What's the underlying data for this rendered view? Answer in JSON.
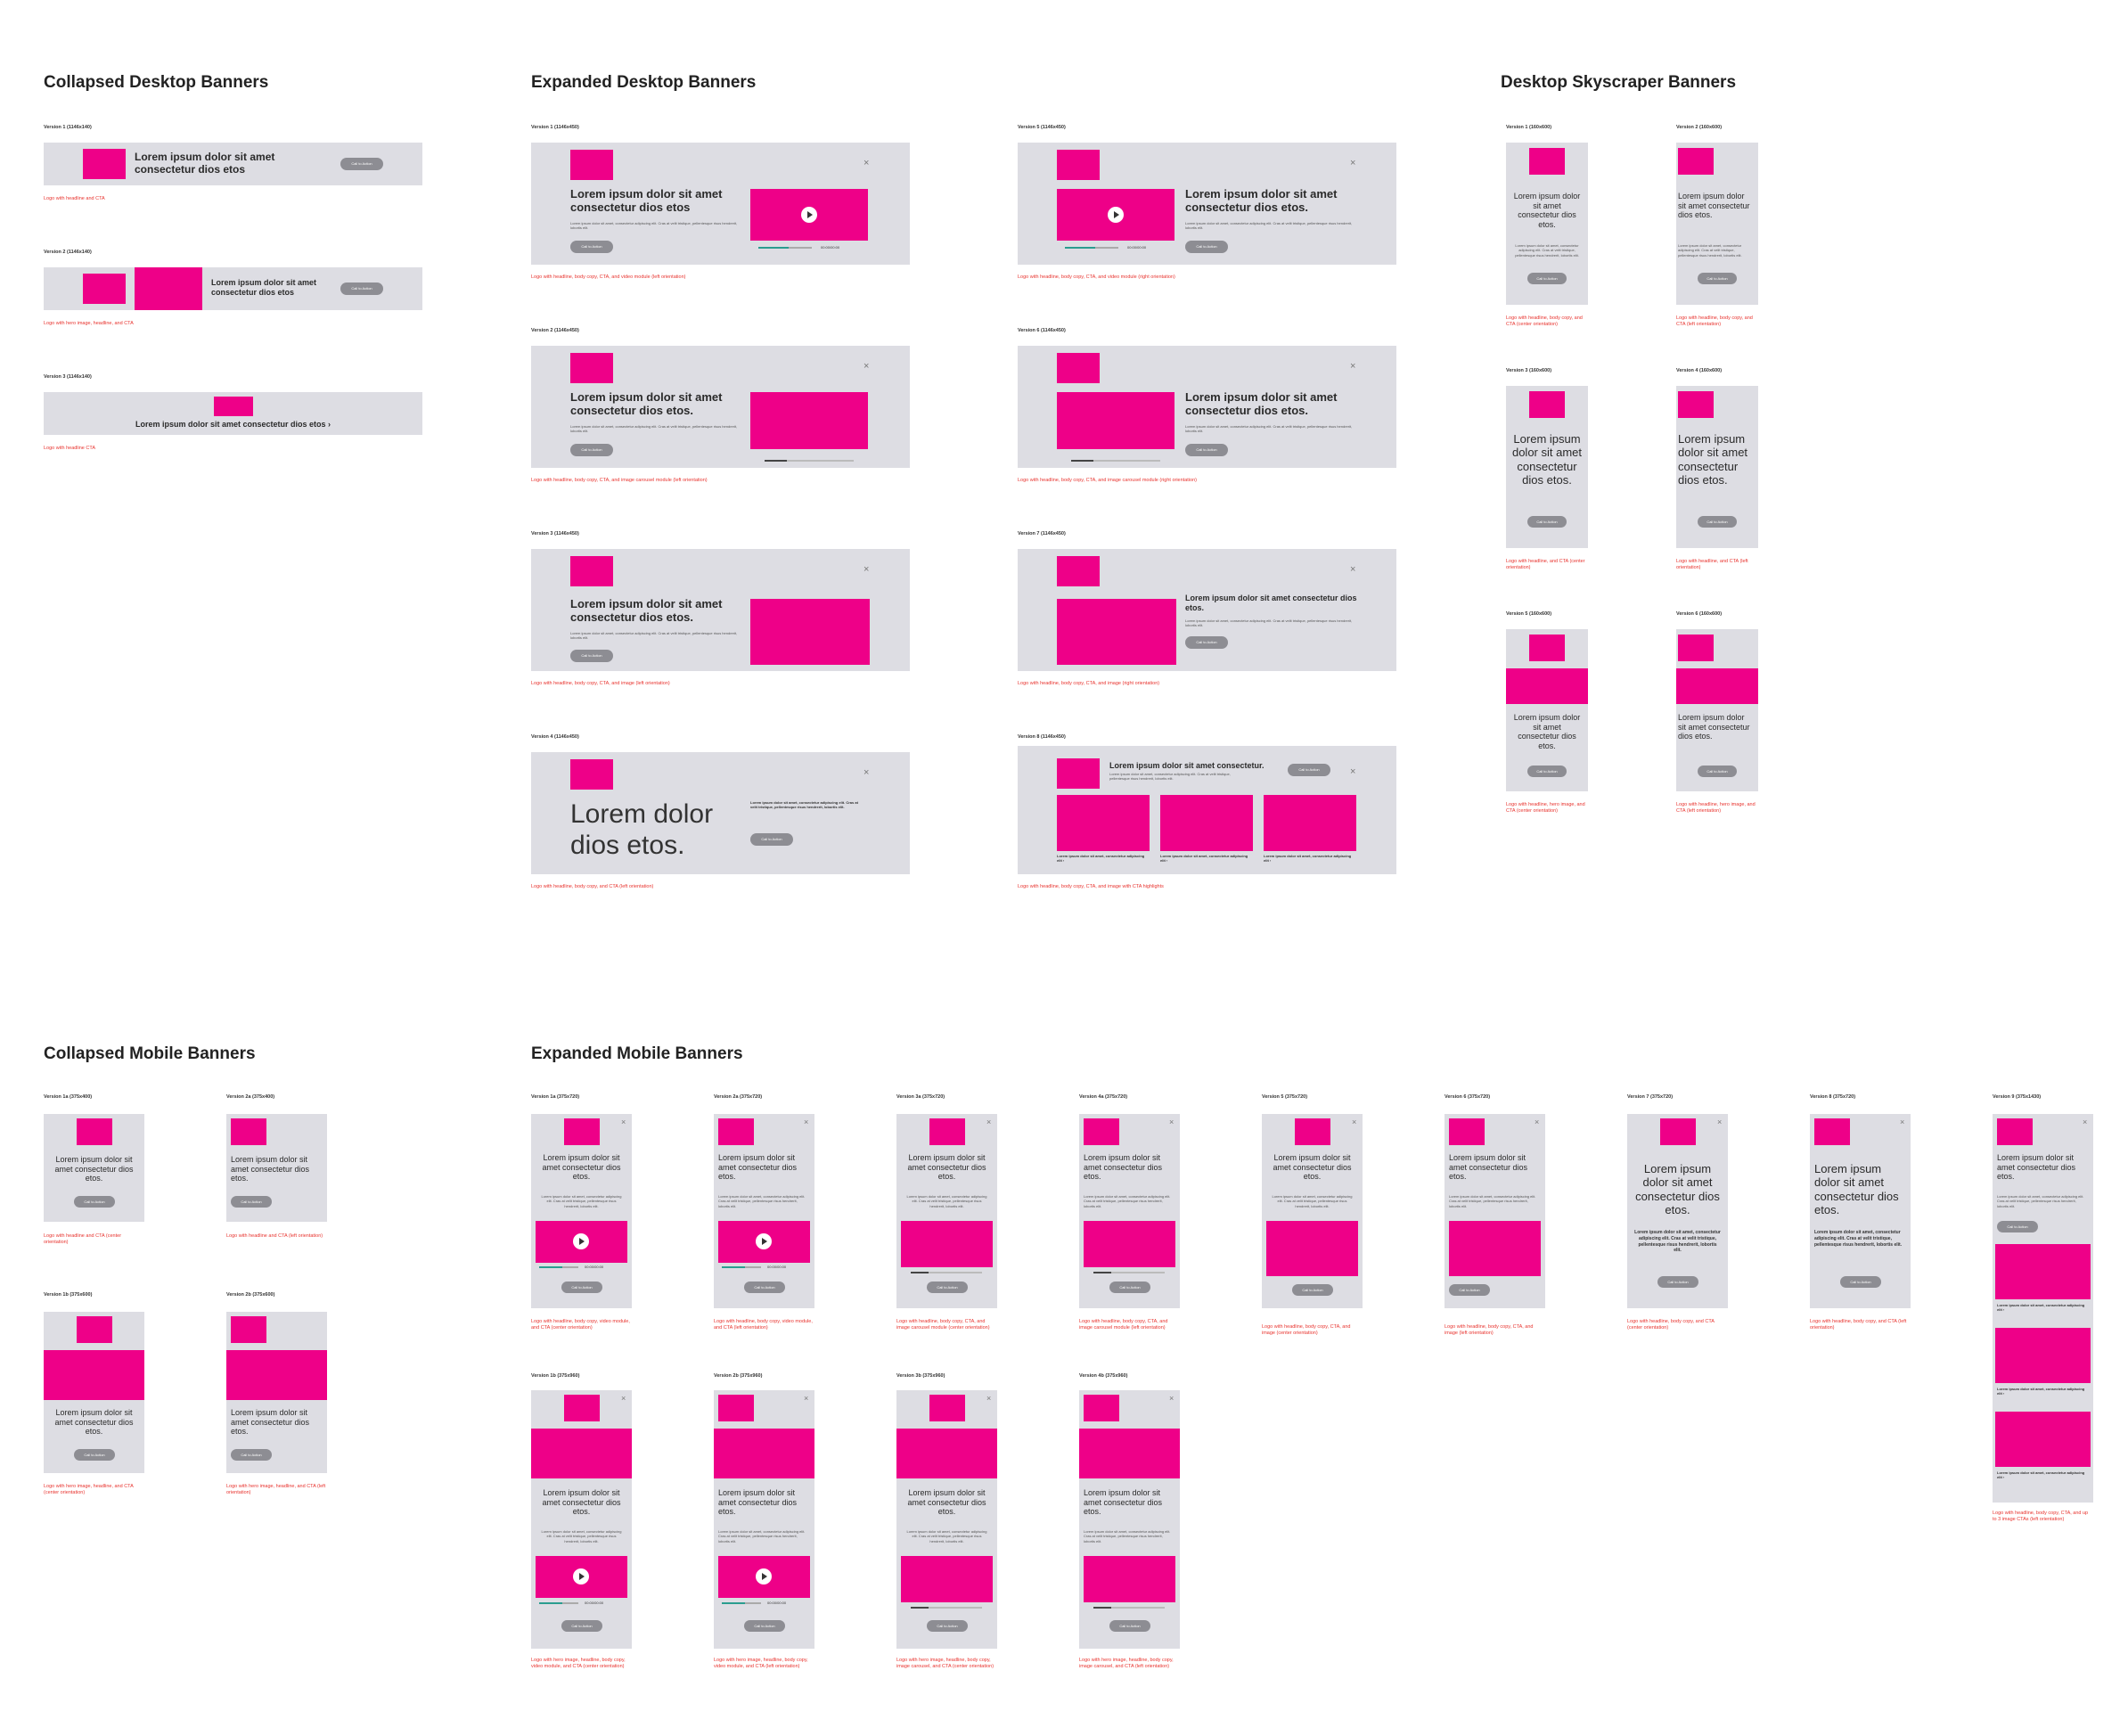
{
  "sections": {
    "collapsed_desktop": "Collapsed Desktop Banners",
    "expanded_desktop": "Expanded Desktop Banners",
    "skyscraper": "Desktop Skyscraper Banners",
    "collapsed_mobile": "Collapsed Mobile Banners",
    "expanded_mobile": "Expanded Mobile Banners"
  },
  "common": {
    "cta": "Call to Action",
    "h_short": "Lorem ipsum dolor sit amet consectetur dios etos",
    "h_period": "Lorem ipsum dolor sit amet consectetur dios etos.",
    "h_arrow": "Lorem ipsum dolor sit amet consectetur dios etos ›",
    "h_big": "Lorem dolor dios etos.",
    "h_consect": "Lorem ipsum dolor sit amet consectetur.",
    "body": "Lorem ipsum dolor sit amet, consectetur adipiscing elit. Cras at velit tristique, pellentesque risus hendrerit, lobortis elit.",
    "body_bold": "Lorem ipsum dolor sit amet, consectetur adipiscing elit. Cras at velit tristique, pellentesque risus hendrerit, lobortis elit.",
    "tile": "Lorem ipsum dolor sit amet, consectetur adipiscing elit ›",
    "time": "00:00/00:00"
  },
  "collapsed_desktop": [
    {
      "version": "Version 1 (1146x140)",
      "caption": "Logo with headline and CTA"
    },
    {
      "version": "Version 2 (1146x140)",
      "caption": "Logo with hero image, headline, and CTA"
    },
    {
      "version": "Version 3 (1146x140)",
      "caption": "Logo with headline CTA"
    }
  ],
  "expanded_desktop": [
    {
      "version": "Version 1 (1146x450)",
      "caption": "Logo with headline, body copy, CTA, and video module (left orientation)"
    },
    {
      "version": "Version 5 (1146x450)",
      "caption": "Logo with headline, body copy, CTA, and video module (right orientation)"
    },
    {
      "version": "Version 2 (1146x450)",
      "caption": "Logo with headline, body copy, CTA, and image carousel module (left orientation)"
    },
    {
      "version": "Version 6 (1146x450)",
      "caption": "Logo with headline, body copy, CTA, and image carousel module (right orientation)"
    },
    {
      "version": "Version 3 (1146x450)",
      "caption": "Logo with headline, body copy, CTA, and image (left orientation)"
    },
    {
      "version": "Version 7 (1146x450)",
      "caption": "Logo with headline, body copy, CTA, and image (right orientation)"
    },
    {
      "version": "Version 4 (1146x450)",
      "caption": "Logo with headline, body copy, and CTA (left orientation)"
    },
    {
      "version": "Version 8 (1146x450)",
      "caption": "Logo with headline, body copy, CTA, and image with CTA highlights"
    }
  ],
  "skyscraper": [
    {
      "version": "Version 1 (160x600)",
      "caption": "Logo with headline, body copy, and CTA (center orientation)"
    },
    {
      "version": "Version 2 (160x600)",
      "caption": "Logo with headline, body copy, and CTA (left orientation)"
    },
    {
      "version": "Version 3 (160x600)",
      "caption": "Logo with headline, and CTA (center orientation)"
    },
    {
      "version": "Version 4 (160x600)",
      "caption": "Logo with headline, and CTA (left orientation)"
    },
    {
      "version": "Version 5 (160x600)",
      "caption": "Logo with headline, hero image, and CTA (center orientation)"
    },
    {
      "version": "Version 6 (160x600)",
      "caption": "Logo with headline, hero image, and CTA (left orientation)"
    }
  ],
  "collapsed_mobile": [
    {
      "version": "Version 1a (375x400)",
      "caption": "Logo with headline and CTA (center orientation)"
    },
    {
      "version": "Version 2a (375x400)",
      "caption": "Logo with headline and CTA (left orientation)"
    },
    {
      "version": "Version 1b (375x600)",
      "caption": "Logo with hero image, headline, and CTA (center orientation)"
    },
    {
      "version": "Version 2b (375x600)",
      "caption": "Logo with hero image, headline, and CTA (left orientation)"
    }
  ],
  "expanded_mobile": [
    {
      "version": "Version 1a (375x720)",
      "caption": "Logo with headline, body copy, video module, and CTA (center orientation)"
    },
    {
      "version": "Version 2a (375x720)",
      "caption": "Logo with headline, body copy, video module, and CTA (left orientation)"
    },
    {
      "version": "Version 3a (375x720)",
      "caption": "Logo with headline, body copy, CTA, and image carousel module (center orientation)"
    },
    {
      "version": "Version 4a (375x720)",
      "caption": "Logo with headline, body copy, CTA, and image carousel module (left orientation)"
    },
    {
      "version": "Version 5 (375x720)",
      "caption": "Logo with headline, body copy, CTA, and image (center orientation)"
    },
    {
      "version": "Version 6 (375x720)",
      "caption": "Logo with headline, body copy, CTA, and image (left orientation)"
    },
    {
      "version": "Version 7 (375x720)",
      "caption": "Logo with headline, body copy, and CTA (center orientation)"
    },
    {
      "version": "Version 8 (375x720)",
      "caption": "Logo with headline, body copy, and CTA (left orientation)"
    },
    {
      "version": "Version 9 (375x1430)",
      "caption": "Logo with headline, body copy, CTA, and up to 3 image CTAs (left orientation)"
    },
    {
      "version": "Version 1b (375x960)",
      "caption": "Logo with hero image, headline, body copy, video module, and CTA (center orientation)"
    },
    {
      "version": "Version 2b (375x960)",
      "caption": "Logo with hero image, headline, body copy, video module, and CTA (left orientation)"
    },
    {
      "version": "Version 3b (375x960)",
      "caption": "Logo with hero image, headline, body copy, image carousel, and CTA (center orientation)"
    },
    {
      "version": "Version 4b (375x960)",
      "caption": "Logo with hero image, headline, body copy, image carousel, and CTA (left orientation)"
    }
  ],
  "colors": {
    "brand": "#ee0088",
    "card": "#dddde3",
    "button": "#8d8d93",
    "caption": "#e8332e"
  }
}
